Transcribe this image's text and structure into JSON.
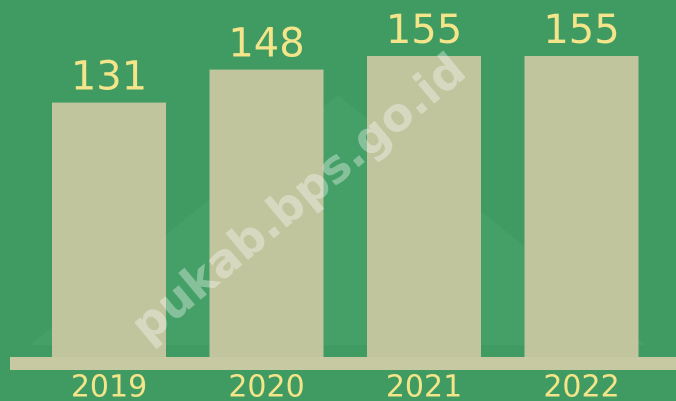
{
  "chart_data": {
    "type": "bar",
    "categories": [
      "2019",
      "2020",
      "2021",
      "2022"
    ],
    "values": [
      131,
      148,
      155,
      155
    ],
    "color": "#c0c59e",
    "watermark": "pukab.bps.go.id"
  }
}
